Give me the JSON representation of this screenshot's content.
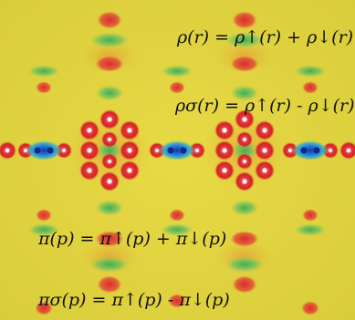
{
  "equations": {
    "rho_total": "ρ(r) = ρ↑(r) + ρ↓(r)",
    "rho_spin": "ρσ(r) = ρ↑(r) - ρ↓(r)",
    "pi_total": "π(p) = π↑(p) + π↓(p)",
    "pi_spin": "πσ(p) = π↑(p) - π↓(p)"
  },
  "colors": {
    "background": "#e3d43c",
    "high": "#d8252d",
    "low": "#2a6fd6",
    "mid": "#58b84c",
    "node": "#ffffff"
  }
}
